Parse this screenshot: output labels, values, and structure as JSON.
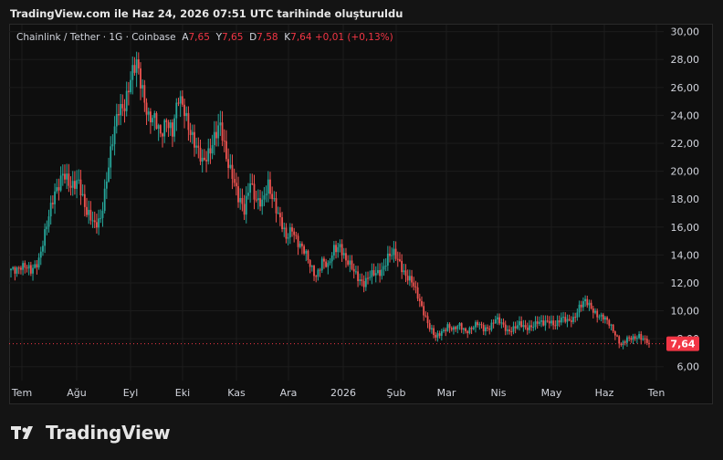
{
  "header": {
    "title": "TradingView.com ile Haz 24, 2026 07:51 UTC tarihinde oluşturuldu"
  },
  "legend": {
    "symbol": "Chainlink / Tether · 1G · Coinbase",
    "open_label": "A",
    "open": "7,65",
    "high_label": "Y",
    "high": "7,65",
    "low_label": "D",
    "low": "7,58",
    "close_label": "K",
    "close": "7,64",
    "change": "+0,01 (+0,13%)"
  },
  "price_tag": "7,64",
  "footer": {
    "brand": "TradingView"
  },
  "colors": {
    "up": "#26a69a",
    "down": "#ef5350",
    "tag": "#f23645",
    "bg": "#0e0e0e"
  },
  "chart_data": {
    "type": "candlestick",
    "ylim": [
      5.0,
      30.5
    ],
    "y_ticks": [
      "6,00",
      "8,00",
      "10,00",
      "12,00",
      "14,00",
      "16,00",
      "18,00",
      "20,00",
      "22,00",
      "24,00",
      "26,00",
      "28,00",
      "30,00"
    ],
    "x_ticks": [
      "Tem",
      "Ağu",
      "Eyl",
      "Eki",
      "Kas",
      "Ara",
      "2026",
      "Şub",
      "Mar",
      "Nis",
      "May",
      "Haz",
      "Ten"
    ],
    "last_price": 7.64,
    "close_path": [
      [
        0,
        13.0
      ],
      [
        5,
        13.2
      ],
      [
        10,
        12.8
      ],
      [
        14,
        13.8
      ],
      [
        18,
        16.0
      ],
      [
        22,
        18.5
      ],
      [
        26,
        20.0
      ],
      [
        30,
        18.6
      ],
      [
        34,
        19.5
      ],
      [
        38,
        17.0
      ],
      [
        42,
        16.0
      ],
      [
        45,
        16.8
      ],
      [
        48,
        19.5
      ],
      [
        51,
        22.0
      ],
      [
        54,
        24.5
      ],
      [
        57,
        25.0
      ],
      [
        60,
        26.5
      ],
      [
        63,
        27.5
      ],
      [
        66,
        26.0
      ],
      [
        69,
        24.0
      ],
      [
        72,
        23.5
      ],
      [
        75,
        22.5
      ],
      [
        78,
        24.0
      ],
      [
        81,
        22.8
      ],
      [
        84,
        25.0
      ],
      [
        87,
        24.5
      ],
      [
        90,
        23.0
      ],
      [
        93,
        21.5
      ],
      [
        96,
        20.5
      ],
      [
        99,
        21.5
      ],
      [
        102,
        22.5
      ],
      [
        105,
        23.0
      ],
      [
        108,
        21.0
      ],
      [
        111,
        20.0
      ],
      [
        114,
        18.0
      ],
      [
        117,
        17.0
      ],
      [
        120,
        19.5
      ],
      [
        123,
        18.0
      ],
      [
        126,
        17.5
      ],
      [
        129,
        19.0
      ],
      [
        132,
        18.0
      ],
      [
        135,
        16.5
      ],
      [
        138,
        15.0
      ],
      [
        141,
        16.0
      ],
      [
        144,
        15.0
      ],
      [
        147,
        14.2
      ],
      [
        150,
        13.2
      ],
      [
        153,
        12.6
      ],
      [
        156,
        13.6
      ],
      [
        159,
        13.0
      ],
      [
        162,
        14.5
      ],
      [
        165,
        14.8
      ],
      [
        168,
        13.5
      ],
      [
        171,
        13.0
      ],
      [
        174,
        12.5
      ],
      [
        177,
        12.0
      ],
      [
        180,
        12.4
      ],
      [
        183,
        12.7
      ],
      [
        186,
        13.0
      ],
      [
        189,
        13.8
      ],
      [
        192,
        14.0
      ],
      [
        195,
        13.5
      ],
      [
        198,
        12.6
      ],
      [
        201,
        12.0
      ],
      [
        204,
        11.0
      ],
      [
        207,
        10.0
      ],
      [
        210,
        8.8
      ],
      [
        213,
        8.0
      ],
      [
        216,
        8.5
      ],
      [
        219,
        9.0
      ],
      [
        222,
        8.6
      ],
      [
        225,
        8.9
      ],
      [
        228,
        8.6
      ],
      [
        231,
        8.8
      ],
      [
        234,
        9.0
      ],
      [
        237,
        8.7
      ],
      [
        240,
        8.9
      ],
      [
        243,
        9.4
      ],
      [
        246,
        9.0
      ],
      [
        249,
        8.6
      ],
      [
        252,
        8.8
      ],
      [
        255,
        9.0
      ],
      [
        258,
        8.7
      ],
      [
        261,
        9.0
      ],
      [
        264,
        9.2
      ],
      [
        267,
        9.0
      ],
      [
        270,
        9.3
      ],
      [
        273,
        9.1
      ],
      [
        276,
        9.4
      ],
      [
        279,
        9.2
      ],
      [
        282,
        9.5
      ],
      [
        285,
        10.3
      ],
      [
        288,
        10.6
      ],
      [
        291,
        10.2
      ],
      [
        294,
        9.8
      ],
      [
        297,
        9.5
      ],
      [
        300,
        9.0
      ],
      [
        303,
        8.4
      ],
      [
        306,
        7.6
      ],
      [
        309,
        7.9
      ],
      [
        312,
        8.0
      ],
      [
        315,
        8.3
      ],
      [
        318,
        7.9
      ],
      [
        320,
        7.64
      ]
    ]
  }
}
